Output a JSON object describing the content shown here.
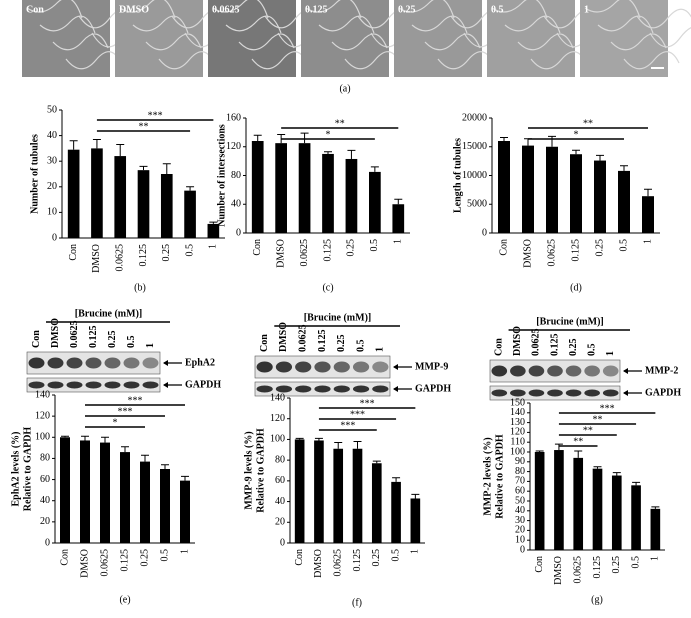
{
  "panel_a": {
    "labels": [
      "Con",
      "DMSO",
      "0.0625",
      "0.125",
      "0.25",
      "0.5",
      "1"
    ],
    "caption": "(a)"
  },
  "blots": [
    {
      "header": "[Brucine (mM)]",
      "lanes": [
        "Con",
        "DMSO",
        "0.0625",
        "0.125",
        "0.25",
        "0.5",
        "1"
      ],
      "targets": [
        "EphA2",
        "GAPDH"
      ]
    },
    {
      "header": "[Brucine (mM)]",
      "lanes": [
        "Con",
        "DMSO",
        "0.0625",
        "0.125",
        "0.25",
        "0.5",
        "1"
      ],
      "targets": [
        "MMP-9",
        "GAPDH"
      ]
    },
    {
      "header": "[Brucine (mM)]",
      "lanes": [
        "Con",
        "DMSO",
        "0.0625",
        "0.125",
        "0.25",
        "0.5",
        "1"
      ],
      "targets": [
        "MMP-2",
        "GAPDH"
      ]
    }
  ],
  "chart_data": [
    {
      "type": "bar",
      "caption": "(b)",
      "ylabel": [
        "Number of tubules"
      ],
      "categories": [
        "Con",
        "DMSO",
        "0.0625",
        "0.125",
        "0.25",
        "0.5",
        "1"
      ],
      "values": [
        34.5,
        35,
        32,
        26.5,
        25,
        18.5,
        5.5
      ],
      "errors": [
        3.5,
        3.5,
        4.5,
        1.5,
        4,
        1.5,
        0.7
      ],
      "color": "#000000",
      "ylim": [
        0,
        50
      ],
      "yticks": [
        0,
        10,
        20,
        30,
        40,
        50
      ],
      "significance": [
        {
          "from": "DMSO",
          "to": "1",
          "label": "***"
        },
        {
          "from": "DMSO",
          "to": "0.5",
          "label": "**"
        }
      ]
    },
    {
      "type": "bar",
      "caption": "(c)",
      "ylabel": [
        "Number of intersections"
      ],
      "categories": [
        "Con",
        "DMSO",
        "0.0625",
        "0.125",
        "0.25",
        "0.5",
        "1"
      ],
      "values": [
        128,
        125,
        125,
        110,
        103,
        85,
        40
      ],
      "errors": [
        8,
        12,
        14,
        3,
        12,
        7,
        7
      ],
      "color": "#000000",
      "ylim": [
        0,
        160
      ],
      "yticks": [
        0,
        40,
        80,
        120,
        160
      ],
      "significance": [
        {
          "from": "DMSO",
          "to": "1",
          "label": "**"
        },
        {
          "from": "DMSO",
          "to": "0.5",
          "label": "*"
        }
      ]
    },
    {
      "type": "bar",
      "caption": "(d)",
      "ylabel": [
        "Length of tubules"
      ],
      "categories": [
        "Con",
        "DMSO",
        "0.0625",
        "0.125",
        "0.25",
        "0.5",
        "1"
      ],
      "values": [
        16000,
        15200,
        15000,
        13700,
        12600,
        10800,
        6400
      ],
      "errors": [
        600,
        1200,
        1800,
        700,
        900,
        900,
        1200
      ],
      "color": "#000000",
      "ylim": [
        0,
        20000
      ],
      "yticks": [
        0,
        5000,
        10000,
        15000,
        20000
      ],
      "significance": [
        {
          "from": "DMSO",
          "to": "1",
          "label": "**"
        },
        {
          "from": "DMSO",
          "to": "0.5",
          "label": "*"
        }
      ]
    },
    {
      "type": "bar",
      "caption": "(e)",
      "ylabel": [
        "EphA2 levels (%)",
        "Relative to GAPDH"
      ],
      "categories": [
        "Con",
        "DMSO",
        "0.0625",
        "0.125",
        "0.25",
        "0.5",
        "1"
      ],
      "values": [
        100,
        97,
        95,
        86,
        77,
        70,
        59
      ],
      "errors": [
        1,
        4,
        5,
        5,
        6,
        4,
        4
      ],
      "color": "#000000",
      "ylim": [
        0,
        140
      ],
      "yticks": [
        0,
        20,
        40,
        60,
        80,
        100,
        120,
        140
      ],
      "significance": [
        {
          "from": "DMSO",
          "to": "1",
          "label": "***"
        },
        {
          "from": "DMSO",
          "to": "0.5",
          "label": "***"
        },
        {
          "from": "DMSO",
          "to": "0.25",
          "label": "*"
        }
      ]
    },
    {
      "type": "bar",
      "caption": "(f)",
      "ylabel": [
        "MMP-9 levels (%)",
        "Relative to GAPDH"
      ],
      "categories": [
        "Con",
        "DMSO",
        "0.0625",
        "0.125",
        "0.25",
        "0.5",
        "1"
      ],
      "values": [
        100,
        99,
        91,
        91,
        77,
        59,
        43
      ],
      "errors": [
        1,
        2,
        6,
        7,
        2,
        4,
        4
      ],
      "color": "#000000",
      "ylim": [
        0,
        140
      ],
      "yticks": [
        0,
        20,
        40,
        60,
        80,
        100,
        120,
        140
      ],
      "significance": [
        {
          "from": "DMSO",
          "to": "1",
          "label": "***"
        },
        {
          "from": "DMSO",
          "to": "0.5",
          "label": "***"
        },
        {
          "from": "DMSO",
          "to": "0.25",
          "label": "***"
        }
      ]
    },
    {
      "type": "bar",
      "caption": "(g)",
      "ylabel": [
        "MMP-2 levels (%)",
        "Relative to GAPDH"
      ],
      "categories": [
        "Con",
        "DMSO",
        "0.0625",
        "0.125",
        "0.25",
        "0.5",
        "1"
      ],
      "values": [
        100,
        102,
        94,
        83,
        76,
        66,
        42
      ],
      "errors": [
        1,
        6,
        7,
        2,
        3,
        3,
        2
      ],
      "color": "#000000",
      "ylim": [
        0,
        150
      ],
      "yticks": [
        0,
        10,
        20,
        30,
        40,
        50,
        60,
        70,
        80,
        90,
        100,
        110,
        120,
        130,
        140,
        150
      ],
      "significance": [
        {
          "from": "DMSO",
          "to": "1",
          "label": "***"
        },
        {
          "from": "DMSO",
          "to": "0.5",
          "label": "**"
        },
        {
          "from": "DMSO",
          "to": "0.25",
          "label": "**"
        },
        {
          "from": "DMSO",
          "to": "0.125",
          "label": "**"
        }
      ]
    }
  ]
}
